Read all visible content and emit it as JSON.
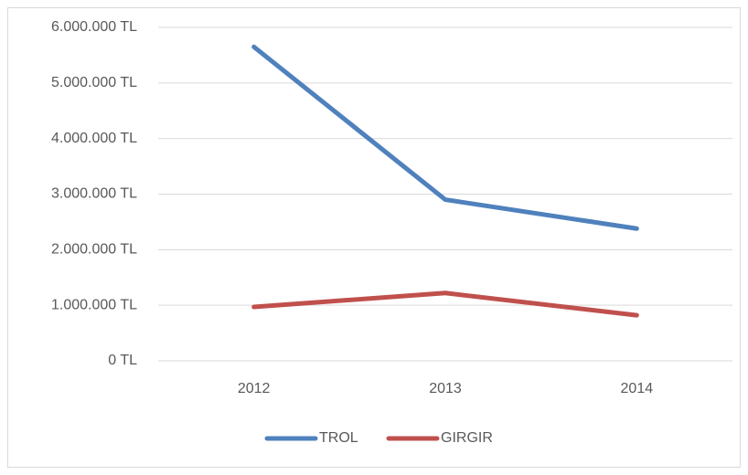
{
  "chart_data": {
    "type": "line",
    "categories": [
      "2012",
      "2013",
      "2014"
    ],
    "series": [
      {
        "name": "TROL",
        "color": "#4f81bd",
        "values": [
          5650000,
          2900000,
          2380000
        ]
      },
      {
        "name": "GIRGIR",
        "color": "#c0504d",
        "values": [
          970000,
          1220000,
          820000
        ]
      }
    ],
    "ylim": [
      0,
      6000000
    ],
    "yticks": [
      {
        "value": 0,
        "label": "0 TL"
      },
      {
        "value": 1000000,
        "label": "1.000.000 TL"
      },
      {
        "value": 2000000,
        "label": "2.000.000 TL"
      },
      {
        "value": 3000000,
        "label": "3.000.000 TL"
      },
      {
        "value": 4000000,
        "label": "4.000.000 TL"
      },
      {
        "value": 5000000,
        "label": "5.000.000 TL"
      },
      {
        "value": 6000000,
        "label": "6.000.000 TL"
      }
    ],
    "grid": true,
    "legend": "bottom"
  }
}
